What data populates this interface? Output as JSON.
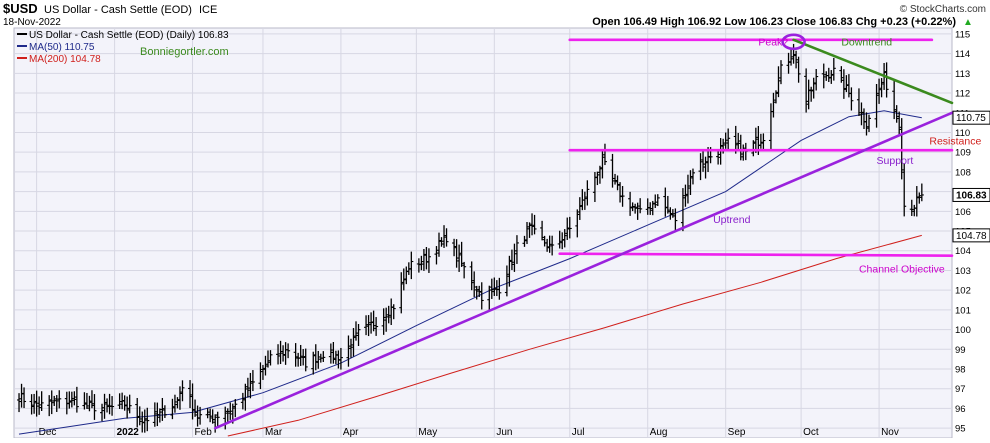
{
  "header": {
    "symbol": "$USD",
    "name": "US Dollar - Cash Settle (EOD)",
    "exchange": "ICE",
    "date": "18-Nov-2022",
    "ohlc": "Open 106.49  High 106.92  Low 106.23  Close 106.83  Chg +0.23 (+0.22%)",
    "copyright": "© StockCharts.com",
    "up_arrow": "▲"
  },
  "legend": {
    "price_label": "US Dollar - Cash Settle (EOD) (Daily) 106.83",
    "ma50_label": "MA(50) 110.75",
    "ma200_label": "MA(200) 104.78",
    "watermark": "Bonniegortler.com"
  },
  "colors": {
    "background": "#ffffff",
    "plot_background": "#f3f3fa",
    "grid": "#d7d7e3",
    "price": "#000000",
    "ma50": "#1f2a8a",
    "ma200": "#d0201c",
    "magenta": "#ee22ee",
    "trend_purple": "#9a22dd",
    "downtrend_green": "#3b8a1e",
    "label_magenta": "#cc00cc",
    "label_purple": "#8a20cc",
    "label_green": "#3b8a1e",
    "label_red": "#d0201c"
  },
  "chart_data": {
    "type": "line",
    "subtype": "ohlc-bars",
    "title": "$USD US Dollar - Cash Settle (EOD) ICE",
    "y_axis_side": "right",
    "ylim": [
      94.5,
      115.3
    ],
    "y_ticks": [
      95,
      96,
      97,
      98,
      99,
      100,
      101,
      102,
      103,
      104,
      105,
      106,
      107,
      108,
      109,
      110,
      111,
      112,
      113,
      114,
      115
    ],
    "x_ticks": [
      "Dec",
      "2022",
      "Feb",
      "Mar",
      "Apr",
      "May",
      "Jun",
      "Jul",
      "Aug",
      "Sep",
      "Oct",
      "Nov"
    ],
    "x_tick_dates": [
      "2021-12-01",
      "2022-01-01",
      "2022-02-01",
      "2022-03-01",
      "2022-04-01",
      "2022-05-01",
      "2022-06-01",
      "2022-07-01",
      "2022-08-01",
      "2022-09-01",
      "2022-10-01",
      "2022-11-01"
    ],
    "xlim": [
      "2021-11-22",
      "2022-11-30"
    ],
    "grid": true,
    "price_close": [
      [
        "2021-11-24",
        96.6
      ],
      [
        "2021-12-01",
        96.1
      ],
      [
        "2021-12-08",
        96.3
      ],
      [
        "2021-12-15",
        96.4
      ],
      [
        "2021-12-22",
        96.1
      ],
      [
        "2021-12-29",
        96.0
      ],
      [
        "2022-01-05",
        96.2
      ],
      [
        "2022-01-12",
        95.4
      ],
      [
        "2022-01-19",
        95.7
      ],
      [
        "2022-01-26",
        96.4
      ],
      [
        "2022-01-28",
        97.2
      ],
      [
        "2022-02-03",
        95.6
      ],
      [
        "2022-02-10",
        95.6
      ],
      [
        "2022-02-17",
        96.0
      ],
      [
        "2022-02-24",
        97.1
      ],
      [
        "2022-03-04",
        98.5
      ],
      [
        "2022-03-11",
        99.0
      ],
      [
        "2022-03-18",
        98.3
      ],
      [
        "2022-03-25",
        98.8
      ],
      [
        "2022-04-01",
        98.6
      ],
      [
        "2022-04-08",
        99.8
      ],
      [
        "2022-04-15",
        100.4
      ],
      [
        "2022-04-22",
        101.2
      ],
      [
        "2022-04-28",
        103.2
      ],
      [
        "2022-05-06",
        103.7
      ],
      [
        "2022-05-13",
        104.7
      ],
      [
        "2022-05-20",
        103.1
      ],
      [
        "2022-05-27",
        101.7
      ],
      [
        "2022-06-03",
        102.1
      ],
      [
        "2022-06-10",
        104.2
      ],
      [
        "2022-06-15",
        105.1
      ],
      [
        "2022-06-24",
        104.1
      ],
      [
        "2022-07-01",
        105.1
      ],
      [
        "2022-07-08",
        107.0
      ],
      [
        "2022-07-14",
        108.5
      ],
      [
        "2022-07-22",
        106.7
      ],
      [
        "2022-07-29",
        105.9
      ],
      [
        "2022-08-05",
        106.6
      ],
      [
        "2022-08-12",
        105.6
      ],
      [
        "2022-08-19",
        108.1
      ],
      [
        "2022-08-26",
        108.8
      ],
      [
        "2022-09-02",
        109.5
      ],
      [
        "2022-09-09",
        109.0
      ],
      [
        "2022-09-16",
        109.8
      ],
      [
        "2022-09-23",
        113.2
      ],
      [
        "2022-09-28",
        114.1
      ],
      [
        "2022-10-03",
        111.6
      ],
      [
        "2022-10-07",
        112.7
      ],
      [
        "2022-10-14",
        113.1
      ],
      [
        "2022-10-21",
        111.8
      ],
      [
        "2022-10-27",
        110.5
      ],
      [
        "2022-11-03",
        112.8
      ],
      [
        "2022-11-09",
        110.4
      ],
      [
        "2022-11-11",
        106.3
      ],
      [
        "2022-11-15",
        106.3
      ],
      [
        "2022-11-18",
        106.83
      ]
    ],
    "series": [
      {
        "name": "MA(50) 110.75",
        "color": "#1f2a8a",
        "points": [
          [
            "2021-11-24",
            94.7
          ],
          [
            "2021-12-15",
            95.1
          ],
          [
            "2022-01-05",
            95.5
          ],
          [
            "2022-02-01",
            95.8
          ],
          [
            "2022-03-01",
            96.8
          ],
          [
            "2022-04-01",
            98.3
          ],
          [
            "2022-05-01",
            100.2
          ],
          [
            "2022-06-01",
            102.1
          ],
          [
            "2022-07-01",
            103.6
          ],
          [
            "2022-08-01",
            105.3
          ],
          [
            "2022-09-01",
            107.0
          ],
          [
            "2022-10-01",
            109.6
          ],
          [
            "2022-10-20",
            110.8
          ],
          [
            "2022-11-03",
            111.1
          ],
          [
            "2022-11-18",
            110.75
          ]
        ]
      },
      {
        "name": "MA(200) 104.78",
        "color": "#d0201c",
        "points": [
          [
            "2022-02-15",
            94.6
          ],
          [
            "2022-03-15",
            95.4
          ],
          [
            "2022-04-15",
            96.6
          ],
          [
            "2022-05-15",
            97.8
          ],
          [
            "2022-06-15",
            99.0
          ],
          [
            "2022-07-15",
            100.1
          ],
          [
            "2022-08-15",
            101.3
          ],
          [
            "2022-09-15",
            102.4
          ],
          [
            "2022-10-15",
            103.6
          ],
          [
            "2022-11-18",
            104.78
          ]
        ]
      }
    ],
    "last_value_labels": [
      {
        "value": 110.75,
        "text": "110.75"
      },
      {
        "value": 106.83,
        "text": "106.83"
      },
      {
        "value": 104.78,
        "text": "104.78"
      }
    ],
    "annotations": {
      "lines": [
        {
          "name": "top-resistance-line",
          "color": "#ee22ee",
          "from": [
            "2022-07-01",
            114.7
          ],
          "to": [
            "2022-11-22",
            114.7
          ]
        },
        {
          "name": "resistance-line",
          "color": "#ee22ee",
          "from": [
            "2022-07-01",
            109.1
          ],
          "to": [
            "2022-11-30",
            109.1
          ]
        },
        {
          "name": "channel-objective-line",
          "color": "#ee22ee",
          "from": [
            "2022-06-27",
            103.85
          ],
          "to": [
            "2022-11-30",
            103.75
          ]
        },
        {
          "name": "uptrend-line",
          "color": "#9a22dd",
          "from": [
            "2022-02-10",
            95.0
          ],
          "to": [
            "2022-11-30",
            111.0
          ]
        },
        {
          "name": "downtrend-line",
          "color": "#3b8a1e",
          "from": [
            "2022-09-28",
            114.7
          ],
          "to": [
            "2022-11-30",
            111.5
          ]
        }
      ],
      "labels": [
        {
          "text": "Peak?",
          "at": [
            "2022-09-14",
            114.4
          ],
          "color": "#cc00cc"
        },
        {
          "text": "Downtrend",
          "at": [
            "2022-10-17",
            114.4
          ],
          "color": "#3b8a1e"
        },
        {
          "text": "Resistance",
          "at": [
            "2022-11-21",
            109.4
          ],
          "color": "#d0201c"
        },
        {
          "text": "Support",
          "at": [
            "2022-10-31",
            108.4
          ],
          "color": "#8a20cc"
        },
        {
          "text": "Uptrend",
          "at": [
            "2022-08-27",
            105.4
          ],
          "color": "#8a20cc"
        },
        {
          "text": "Channel Objective",
          "at": [
            "2022-10-24",
            102.9
          ],
          "color": "#cc00cc"
        }
      ],
      "peak_marker": {
        "at": [
          "2022-09-28",
          114.6
        ],
        "color": "#9a22dd"
      }
    }
  }
}
